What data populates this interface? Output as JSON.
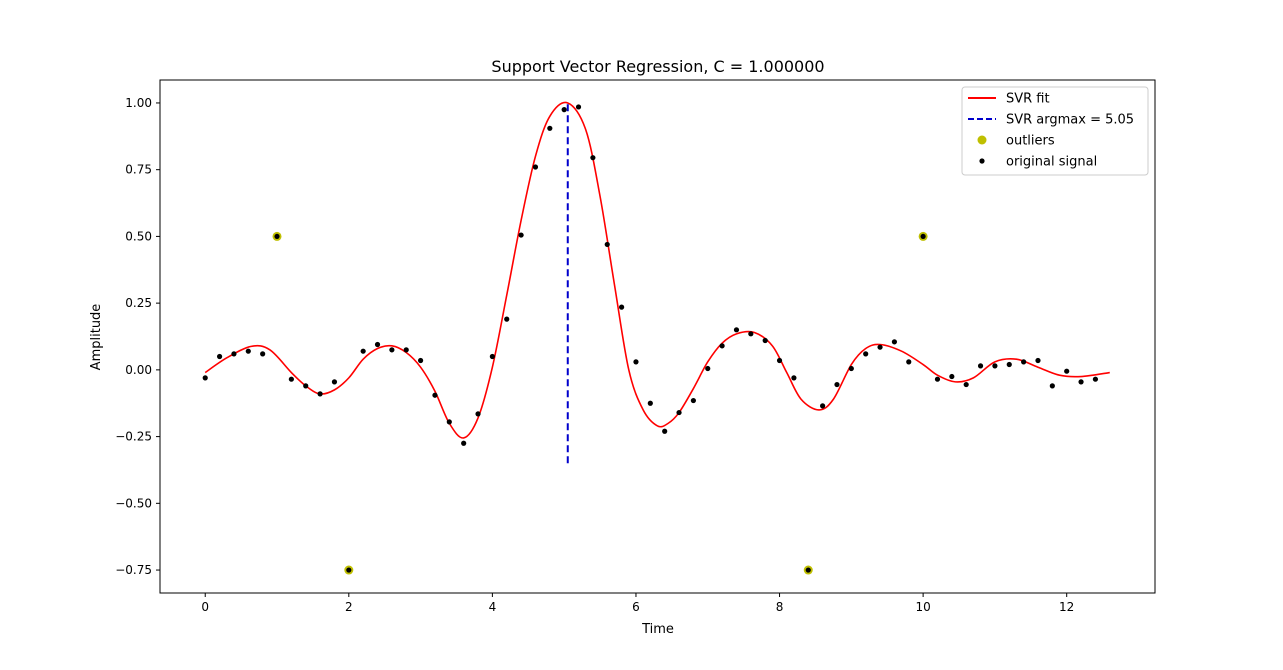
{
  "chart_data": {
    "type": "scatter",
    "title": "Support Vector Regression, C = 1.000000",
    "xlabel": "Time",
    "ylabel": "Amplitude",
    "xlim": [
      -0.63,
      13.23
    ],
    "ylim": [
      -0.836,
      1.086
    ],
    "x_ticks": [
      0,
      2,
      4,
      6,
      8,
      10,
      12
    ],
    "x_tick_labels": [
      "0",
      "2",
      "4",
      "6",
      "8",
      "10",
      "12"
    ],
    "y_ticks": [
      -0.75,
      -0.5,
      -0.25,
      0.0,
      0.25,
      0.5,
      0.75,
      1.0
    ],
    "y_tick_labels": [
      "−0.75",
      "−0.50",
      "−0.25",
      "0.00",
      "0.25",
      "0.50",
      "0.75",
      "1.00"
    ],
    "grid": false,
    "legend_position": "top-right",
    "colors": {
      "fit": "#ff0000",
      "argmax": "#0000cc",
      "outlier": "#bfbf00",
      "signal": "#000000"
    },
    "series": [
      {
        "name": "SVR fit",
        "type": "line",
        "color": "#ff0000",
        "x": [
          0,
          0.3,
          0.64,
          0.9,
          1.2,
          1.4,
          1.6,
          1.8,
          2.0,
          2.2,
          2.4,
          2.6,
          2.8,
          3.0,
          3.2,
          3.4,
          3.6,
          3.8,
          4.0,
          4.2,
          4.4,
          4.6,
          4.8,
          5.05,
          5.3,
          5.5,
          5.7,
          5.9,
          6.1,
          6.3,
          6.45,
          6.6,
          6.8,
          7.0,
          7.2,
          7.4,
          7.65,
          7.9,
          8.1,
          8.3,
          8.55,
          8.75,
          9.0,
          9.2,
          9.4,
          9.7,
          10.0,
          10.2,
          10.45,
          10.7,
          11.0,
          11.3,
          11.6,
          11.9,
          12.2,
          12.6
        ],
        "y": [
          -0.01,
          0.045,
          0.088,
          0.075,
          -0.01,
          -0.06,
          -0.09,
          -0.075,
          -0.03,
          0.04,
          0.08,
          0.09,
          0.065,
          0.01,
          -0.08,
          -0.2,
          -0.255,
          -0.18,
          0.01,
          0.28,
          0.56,
          0.8,
          0.95,
          1.0,
          0.9,
          0.65,
          0.32,
          0.0,
          -0.15,
          -0.21,
          -0.2,
          -0.16,
          -0.07,
          0.03,
          0.1,
          0.135,
          0.14,
          0.09,
          -0.01,
          -0.11,
          -0.15,
          -0.11,
          0.02,
          0.08,
          0.095,
          0.07,
          0.02,
          -0.02,
          -0.045,
          -0.03,
          0.03,
          0.04,
          0.01,
          -0.02,
          -0.025,
          -0.01
        ]
      },
      {
        "name": "SVR argmax = 5.05",
        "type": "vline",
        "color": "#0000cc",
        "x": 5.05,
        "y_range": [
          -0.35,
          1.0
        ]
      },
      {
        "name": "outliers",
        "type": "scatter",
        "color": "#bfbf00",
        "points": [
          [
            1.0,
            0.5
          ],
          [
            2.0,
            -0.75
          ],
          [
            8.4,
            -0.75
          ],
          [
            10.0,
            0.5
          ]
        ]
      },
      {
        "name": "original signal",
        "type": "scatter",
        "color": "#000000",
        "points": [
          [
            0.0,
            -0.03
          ],
          [
            0.2,
            0.05
          ],
          [
            0.4,
            0.06
          ],
          [
            0.6,
            0.07
          ],
          [
            0.8,
            0.06
          ],
          [
            1.0,
            0.5
          ],
          [
            1.2,
            -0.035
          ],
          [
            1.4,
            -0.06
          ],
          [
            1.6,
            -0.09
          ],
          [
            1.8,
            -0.045
          ],
          [
            2.0,
            -0.75
          ],
          [
            2.2,
            0.07
          ],
          [
            2.4,
            0.095
          ],
          [
            2.6,
            0.075
          ],
          [
            2.8,
            0.075
          ],
          [
            3.0,
            0.035
          ],
          [
            3.2,
            -0.095
          ],
          [
            3.4,
            -0.195
          ],
          [
            3.6,
            -0.275
          ],
          [
            3.8,
            -0.165
          ],
          [
            4.0,
            0.05
          ],
          [
            4.2,
            0.19
          ],
          [
            4.4,
            0.505
          ],
          [
            4.6,
            0.76
          ],
          [
            4.8,
            0.905
          ],
          [
            5.0,
            0.975
          ],
          [
            5.2,
            0.985
          ],
          [
            5.4,
            0.795
          ],
          [
            5.6,
            0.47
          ],
          [
            5.8,
            0.235
          ],
          [
            6.0,
            0.03
          ],
          [
            6.2,
            -0.125
          ],
          [
            6.4,
            -0.23
          ],
          [
            6.6,
            -0.16
          ],
          [
            6.8,
            -0.115
          ],
          [
            7.0,
            0.005
          ],
          [
            7.2,
            0.09
          ],
          [
            7.4,
            0.15
          ],
          [
            7.6,
            0.135
          ],
          [
            7.8,
            0.11
          ],
          [
            8.0,
            0.035
          ],
          [
            8.2,
            -0.03
          ],
          [
            8.4,
            -0.75
          ],
          [
            8.6,
            -0.135
          ],
          [
            8.8,
            -0.055
          ],
          [
            9.0,
            0.005
          ],
          [
            9.2,
            0.06
          ],
          [
            9.4,
            0.085
          ],
          [
            9.6,
            0.105
          ],
          [
            9.8,
            0.03
          ],
          [
            10.0,
            0.5
          ],
          [
            10.2,
            -0.035
          ],
          [
            10.4,
            -0.025
          ],
          [
            10.6,
            -0.055
          ],
          [
            10.8,
            0.015
          ],
          [
            11.0,
            0.015
          ],
          [
            11.2,
            0.02
          ],
          [
            11.4,
            0.03
          ],
          [
            11.6,
            0.035
          ],
          [
            11.8,
            -0.06
          ],
          [
            12.0,
            -0.005
          ],
          [
            12.2,
            -0.045
          ],
          [
            12.4,
            -0.035
          ]
        ]
      }
    ]
  }
}
